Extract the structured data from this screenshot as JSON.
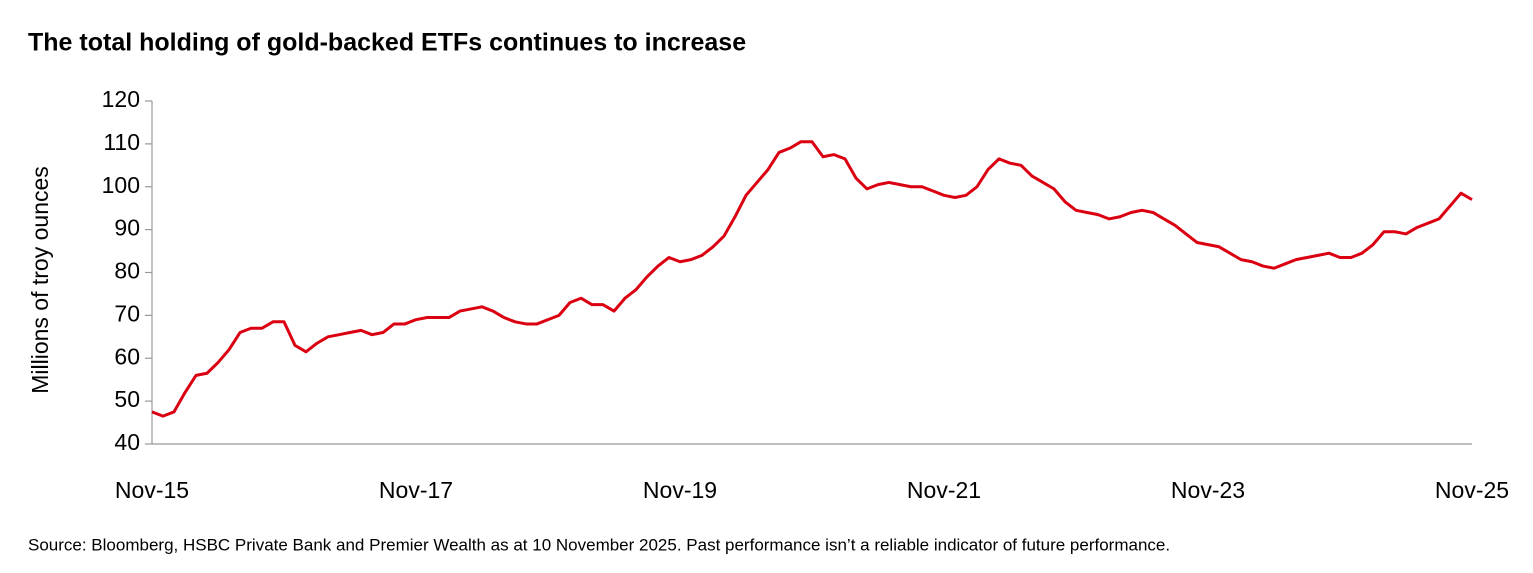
{
  "chart_data": {
    "type": "line",
    "title": "The total holding of gold-backed ETFs continues to increase",
    "y_label": "Millions of troy ounces",
    "source": "Source: Bloomberg, HSBC Private Bank and Premier Wealth as at 10 November 2025. Past performance isn’t a reliable indicator of future performance.",
    "categories": [
      "Nov-15",
      null,
      null,
      null,
      null,
      null,
      null,
      null,
      null,
      null,
      null,
      null,
      null,
      null,
      null,
      null,
      null,
      null,
      null,
      null,
      null,
      null,
      null,
      null,
      "Nov-17",
      null,
      null,
      null,
      null,
      null,
      null,
      null,
      null,
      null,
      null,
      null,
      null,
      null,
      null,
      null,
      null,
      null,
      null,
      null,
      null,
      null,
      null,
      null,
      "Nov-19",
      null,
      null,
      null,
      null,
      null,
      null,
      null,
      null,
      null,
      null,
      null,
      null,
      null,
      null,
      null,
      null,
      null,
      null,
      null,
      null,
      null,
      null,
      null,
      "Nov-21",
      null,
      null,
      null,
      null,
      null,
      null,
      null,
      null,
      null,
      null,
      null,
      null,
      null,
      null,
      null,
      null,
      null,
      null,
      null,
      null,
      null,
      null,
      null,
      "Nov-23",
      null,
      null,
      null,
      null,
      null,
      null,
      null,
      null,
      null,
      null,
      null,
      null,
      null,
      null,
      null,
      null,
      null,
      null,
      null,
      null,
      null,
      null,
      null,
      "Nov-25"
    ],
    "values": [
      47.5,
      46.5,
      47.5,
      52,
      56,
      56.5,
      59,
      62,
      66,
      67,
      67,
      68.5,
      68.5,
      63,
      61.5,
      63.5,
      65,
      65.5,
      66,
      66.5,
      65.5,
      66,
      68,
      68,
      69,
      69.5,
      69.5,
      69.5,
      71,
      71.5,
      72,
      71,
      69.5,
      68.5,
      68,
      68,
      69,
      70,
      73,
      74,
      72.5,
      72.5,
      71,
      74,
      76,
      79,
      81.5,
      83.5,
      82.5,
      83,
      84,
      86,
      88.5,
      93,
      98,
      101,
      104,
      108,
      109,
      110.5,
      110.5,
      107,
      107.5,
      106.5,
      102,
      99.5,
      100.5,
      101,
      100.5,
      100,
      100,
      99,
      98,
      97.5,
      98,
      100,
      104,
      106.5,
      105.5,
      105,
      102.5,
      101,
      99.5,
      96.5,
      94.5,
      94,
      93.5,
      92.5,
      93,
      94,
      94.5,
      94,
      92.5,
      91,
      89,
      87,
      86.5,
      86,
      84.5,
      83,
      82.5,
      81.5,
      81,
      82,
      83,
      83.5,
      84,
      84.5,
      83.5,
      83.5,
      84.5,
      86.5,
      89.5,
      89.5,
      89,
      90.5,
      91.5,
      92.5,
      95.5,
      98.5,
      97
    ],
    "color": "#db0011",
    "ylim": [
      40,
      120
    ],
    "yticks": [
      40,
      50,
      60,
      70,
      80,
      90,
      100,
      110,
      120
    ],
    "grid": false
  }
}
